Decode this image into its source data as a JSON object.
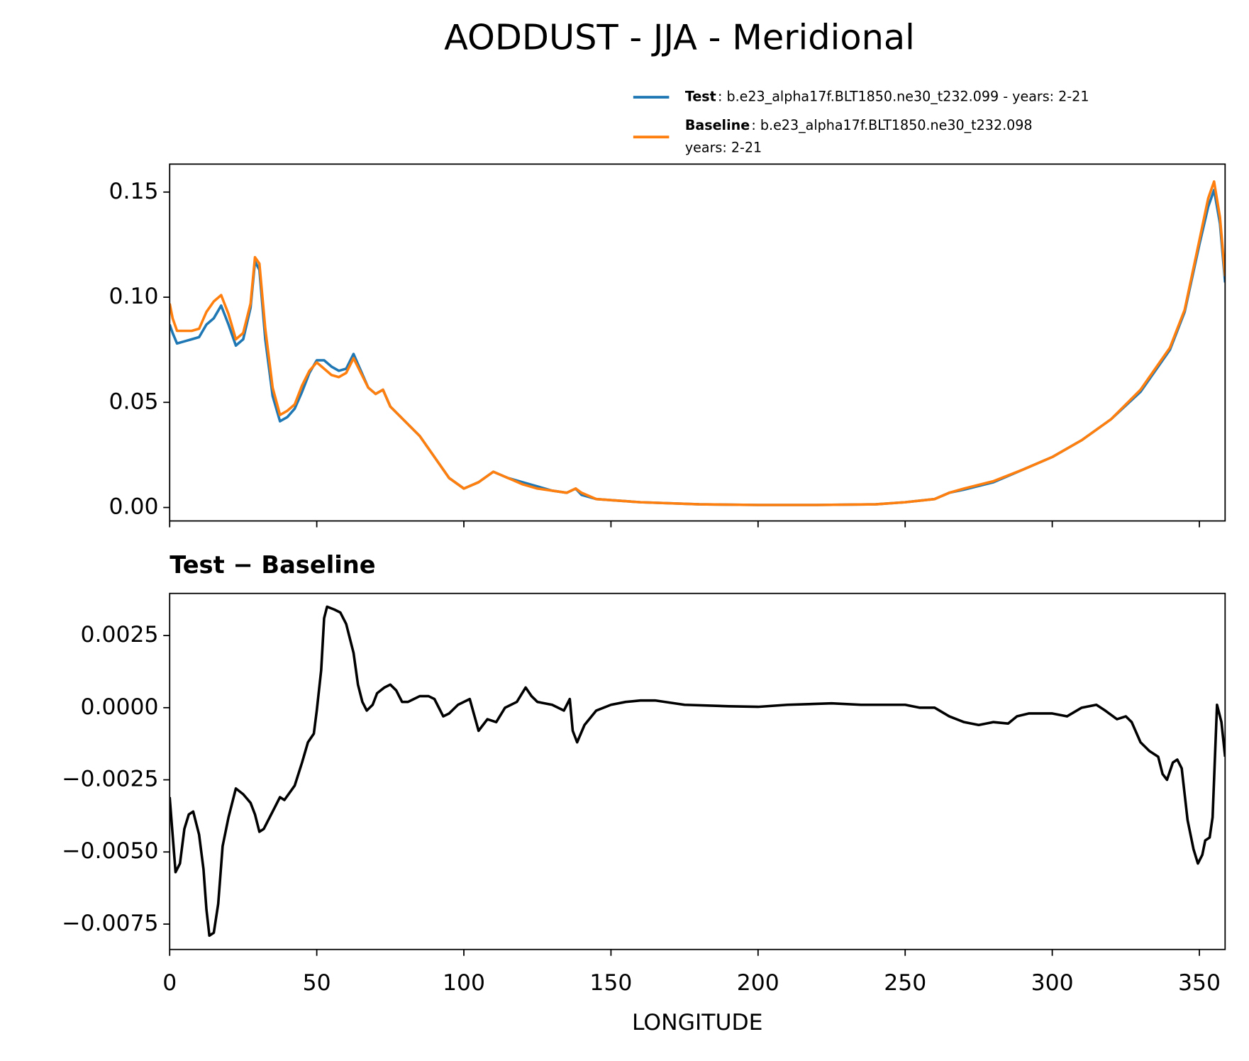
{
  "chart_data": [
    {
      "type": "line",
      "title": "AODDUST - JJA - Meridional",
      "x": [
        0,
        1,
        2.5,
        5,
        7.5,
        10,
        12.5,
        15,
        17.5,
        20,
        22.5,
        25,
        27.5,
        29,
        30.5,
        32.5,
        35,
        37.5,
        40,
        42.5,
        45,
        47.5,
        50,
        52.5,
        55,
        57.5,
        60,
        62.5,
        65,
        67.5,
        70,
        72.5,
        75,
        80,
        85,
        90,
        95,
        100,
        105,
        110,
        115,
        120,
        125,
        130,
        135,
        138,
        140,
        145,
        150,
        160,
        180,
        200,
        220,
        240,
        250,
        260,
        265,
        270,
        280,
        290,
        300,
        310,
        320,
        330,
        340,
        345,
        350,
        353,
        355,
        357,
        358.75
      ],
      "series": [
        {
          "name": "Test",
          "description": [
            ": b.e23_alpha17f.BLT1850.ne30_t232.099 - years: 2-21"
          ],
          "color": "#1f77b4",
          "values": [
            0.087,
            0.083,
            0.078,
            0.079,
            0.08,
            0.081,
            0.087,
            0.09,
            0.096,
            0.087,
            0.077,
            0.08,
            0.095,
            0.117,
            0.113,
            0.08,
            0.053,
            0.041,
            0.043,
            0.047,
            0.055,
            0.064,
            0.07,
            0.07,
            0.067,
            0.065,
            0.066,
            0.073,
            0.065,
            0.057,
            0.054,
            0.056,
            0.048,
            0.041,
            0.034,
            0.024,
            0.014,
            0.009,
            0.012,
            0.017,
            0.014,
            0.012,
            0.01,
            0.008,
            0.007,
            0.009,
            0.006,
            0.004,
            0.0035,
            0.0025,
            0.0015,
            0.0012,
            0.0012,
            0.0015,
            0.0025,
            0.004,
            0.007,
            0.0085,
            0.012,
            0.018,
            0.024,
            0.032,
            0.042,
            0.055,
            0.075,
            0.093,
            0.125,
            0.143,
            0.151,
            0.135,
            0.107
          ]
        },
        {
          "name": "Baseline",
          "description": [
            ": b.e23_alpha17f.BLT1850.ne30_t232.098",
            "years: 2-21"
          ],
          "color": "#ff7f0e",
          "values": [
            0.097,
            0.09,
            0.084,
            0.084,
            0.084,
            0.085,
            0.093,
            0.098,
            0.101,
            0.092,
            0.08,
            0.083,
            0.097,
            0.119,
            0.116,
            0.085,
            0.057,
            0.044,
            0.046,
            0.049,
            0.058,
            0.065,
            0.069,
            0.066,
            0.063,
            0.062,
            0.064,
            0.071,
            0.064,
            0.057,
            0.054,
            0.056,
            0.048,
            0.041,
            0.034,
            0.024,
            0.014,
            0.009,
            0.012,
            0.017,
            0.014,
            0.011,
            0.009,
            0.008,
            0.007,
            0.009,
            0.007,
            0.004,
            0.0035,
            0.0025,
            0.0015,
            0.0012,
            0.0012,
            0.0015,
            0.0025,
            0.004,
            0.007,
            0.009,
            0.0125,
            0.018,
            0.024,
            0.032,
            0.042,
            0.056,
            0.076,
            0.094,
            0.127,
            0.147,
            0.155,
            0.138,
            0.11
          ]
        }
      ],
      "xlim": [
        0,
        358.75
      ],
      "xticks": [
        0,
        50,
        100,
        150,
        200,
        250,
        300,
        350
      ],
      "ylim": [
        -0.0064,
        0.1633
      ],
      "yticks": [
        {
          "value": 0,
          "label": "0.00"
        },
        {
          "value": 0.05,
          "label": "0.05"
        },
        {
          "value": 0.1,
          "label": "0.10"
        },
        {
          "value": 0.15,
          "label": "0.15"
        }
      ],
      "legend": "upper right"
    },
    {
      "type": "line",
      "title": "Test − Baseline",
      "xlabel": "LONGITUDE",
      "x": [
        0,
        2,
        3.5,
        5,
        6.5,
        8,
        10,
        11.5,
        12.5,
        13.5,
        15,
        16.5,
        18,
        20,
        22.5,
        25,
        27.5,
        29,
        30.5,
        32,
        33.5,
        36,
        37.5,
        39,
        42.5,
        45,
        47,
        49,
        50,
        51.5,
        52.5,
        53.5,
        56,
        58,
        60,
        62.5,
        64,
        65.5,
        67,
        69,
        70.5,
        73,
        75,
        77,
        79,
        81,
        83,
        85,
        88,
        90,
        93,
        95,
        98,
        102,
        105,
        108,
        111,
        114,
        118,
        121,
        123,
        125,
        130,
        134,
        136,
        137,
        138.5,
        141,
        145,
        150,
        155,
        160,
        165,
        175,
        190,
        200,
        210,
        225,
        235,
        245,
        250,
        255,
        260,
        265,
        270,
        275,
        280,
        285,
        288,
        292,
        300,
        305,
        310,
        315,
        318,
        322,
        325,
        327,
        330,
        333,
        336,
        337.5,
        339,
        341,
        342.5,
        344,
        346,
        348,
        349.5,
        351,
        352,
        353.5,
        354.5,
        356,
        357.5,
        358.75
      ],
      "series": [
        {
          "color": "#000000",
          "values": [
            -0.0031,
            -0.0057,
            -0.0054,
            -0.0042,
            -0.0037,
            -0.0036,
            -0.0044,
            -0.0056,
            -0.007,
            -0.0079,
            -0.0078,
            -0.0068,
            -0.0048,
            -0.0038,
            -0.0028,
            -0.003,
            -0.0033,
            -0.0037,
            -0.0043,
            -0.0042,
            -0.0039,
            -0.0034,
            -0.0031,
            -0.0032,
            -0.0027,
            -0.0019,
            -0.0012,
            -0.0009,
            -0.0001,
            0.0013,
            0.0031,
            0.0035,
            0.0034,
            0.0033,
            0.0029,
            0.0019,
            0.0008,
            0.0002,
            -0.0001,
            0.0001,
            0.0005,
            0.0007,
            0.0008,
            0.0006,
            0.0002,
            0.0002,
            0.0003,
            0.0004,
            0.0004,
            0.0003,
            -0.0003,
            -0.0002,
            0.0001,
            0.0003,
            -0.0008,
            -0.0004,
            -0.0005,
            0.0,
            0.0002,
            0.0007,
            0.0004,
            0.0002,
            0.0001,
            -0.0001,
            0.0003,
            -0.0008,
            -0.0012,
            -0.0006,
            -0.0001,
            0.0001,
            0.0002,
            0.00025,
            0.00025,
            0.0001,
            5e-05,
            3e-05,
            0.0001,
            0.00015,
            0.0001,
            0.0001,
            0.0001,
            0.0,
            0.0,
            -0.0003,
            -0.0005,
            -0.0006,
            -0.0005,
            -0.00055,
            -0.0003,
            -0.0002,
            -0.0002,
            -0.0003,
            0.0,
            0.0001,
            -0.0001,
            -0.0004,
            -0.0003,
            -0.0005,
            -0.0012,
            -0.0015,
            -0.0017,
            -0.0023,
            -0.0025,
            -0.0019,
            -0.0018,
            -0.0021,
            -0.0039,
            -0.0049,
            -0.0054,
            -0.0051,
            -0.0046,
            -0.0045,
            -0.0038,
            0.0001,
            -0.0005,
            -0.0017
          ]
        }
      ],
      "xlim": [
        0,
        358.75
      ],
      "xticks": [
        0,
        50,
        100,
        150,
        200,
        250,
        300,
        350
      ],
      "ylim": [
        -0.00838,
        0.00396
      ],
      "yticks": [
        {
          "value": -0.0075,
          "label": "−0.0075"
        },
        {
          "value": -0.005,
          "label": "−0.0050"
        },
        {
          "value": -0.0025,
          "label": "−0.0025"
        },
        {
          "value": 0,
          "label": "0.0000"
        },
        {
          "value": 0.0025,
          "label": "0.0025"
        }
      ]
    }
  ]
}
